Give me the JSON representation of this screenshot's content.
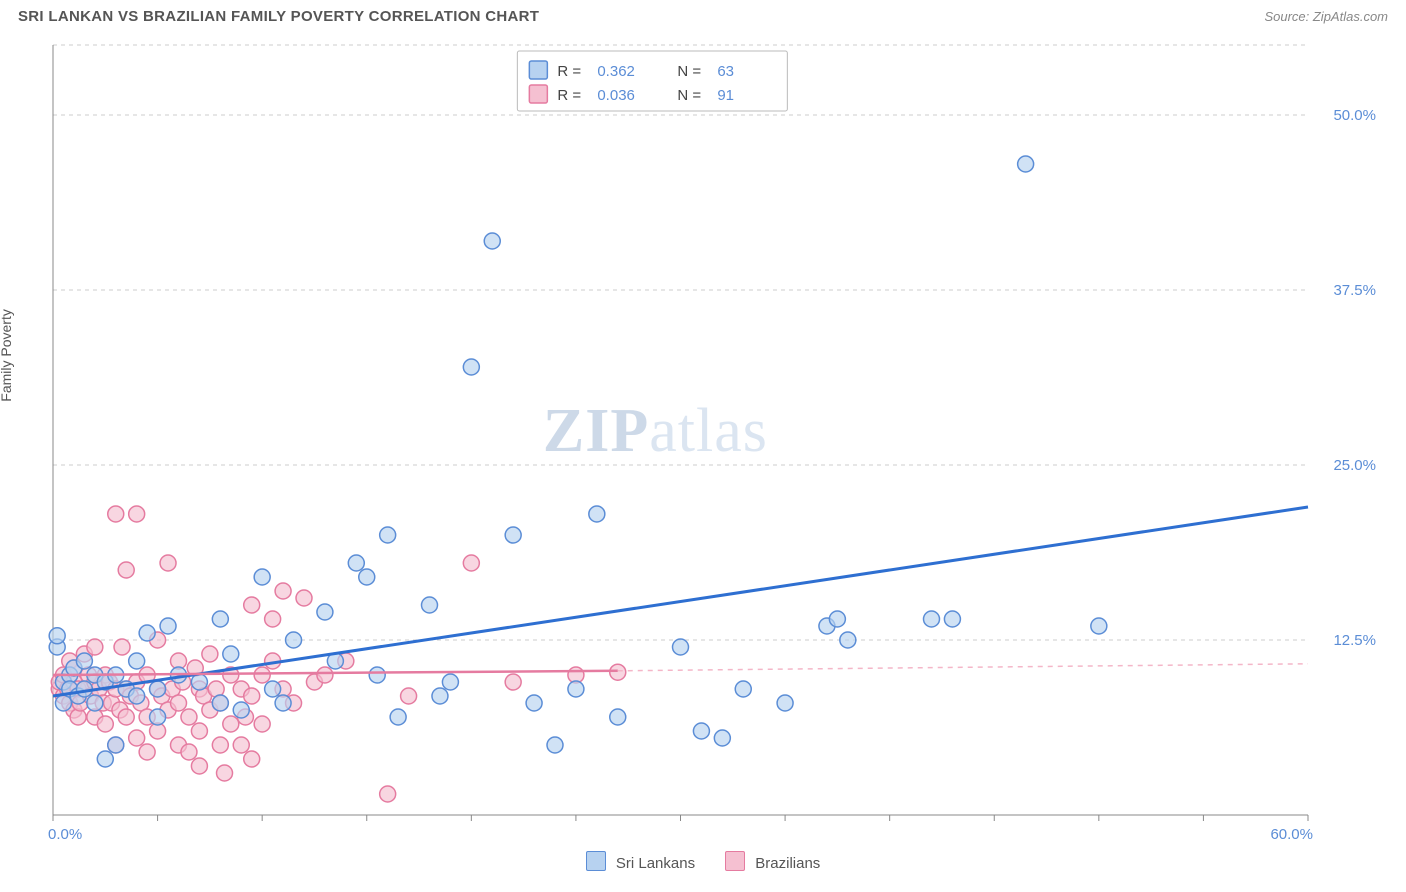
{
  "header": {
    "title": "SRI LANKAN VS BRAZILIAN FAMILY POVERTY CORRELATION CHART",
    "source": "Source: ZipAtlas.com"
  },
  "ylabel": "Family Poverty",
  "chart": {
    "type": "scatter",
    "background_color": "#ffffff",
    "grid_color": "#cccccc",
    "xlim": [
      0,
      60
    ],
    "ylim": [
      0,
      55
    ],
    "ytick_values": [
      12.5,
      25.0,
      37.5,
      50.0
    ],
    "ytick_labels": [
      "12.5%",
      "25.0%",
      "37.5%",
      "50.0%"
    ],
    "x_start_label": "0.0%",
    "x_end_label": "60.0%",
    "xtick_step": 5,
    "marker_radius": 8,
    "series": [
      {
        "name": "Sri Lankans",
        "fill": "#b7d2f0",
        "stroke": "#5b8dd6",
        "fill_opacity": 0.65,
        "R": "0.362",
        "N": "63",
        "trend": {
          "x1": 0,
          "y1": 8.5,
          "x2": 60,
          "y2": 22.0
        },
        "points": [
          [
            0.2,
            12.0
          ],
          [
            0.2,
            12.8
          ],
          [
            0.5,
            8.0
          ],
          [
            0.5,
            9.5
          ],
          [
            0.8,
            10.0
          ],
          [
            0.8,
            9.0
          ],
          [
            1.0,
            10.5
          ],
          [
            1.2,
            8.5
          ],
          [
            1.5,
            9.0
          ],
          [
            1.5,
            11.0
          ],
          [
            2.0,
            10.0
          ],
          [
            2.0,
            8.0
          ],
          [
            2.5,
            9.5
          ],
          [
            2.5,
            4.0
          ],
          [
            3.0,
            10.0
          ],
          [
            3.0,
            5.0
          ],
          [
            3.5,
            9.0
          ],
          [
            4.0,
            11.0
          ],
          [
            4.0,
            8.5
          ],
          [
            4.5,
            13.0
          ],
          [
            5.0,
            9.0
          ],
          [
            5.0,
            7.0
          ],
          [
            5.5,
            13.5
          ],
          [
            6.0,
            10.0
          ],
          [
            7.0,
            9.5
          ],
          [
            8.0,
            8.0
          ],
          [
            8.0,
            14.0
          ],
          [
            8.5,
            11.5
          ],
          [
            9.0,
            7.5
          ],
          [
            10.0,
            17.0
          ],
          [
            10.5,
            9.0
          ],
          [
            11.0,
            8.0
          ],
          [
            11.5,
            12.5
          ],
          [
            13.0,
            14.5
          ],
          [
            13.5,
            11.0
          ],
          [
            14.5,
            18.0
          ],
          [
            15.0,
            17.0
          ],
          [
            15.5,
            10.0
          ],
          [
            16.0,
            20.0
          ],
          [
            16.5,
            7.0
          ],
          [
            18.0,
            15.0
          ],
          [
            18.5,
            8.5
          ],
          [
            19.0,
            9.5
          ],
          [
            20.0,
            32.0
          ],
          [
            21.0,
            41.0
          ],
          [
            22.0,
            20.0
          ],
          [
            23.0,
            8.0
          ],
          [
            24.0,
            5.0
          ],
          [
            25.0,
            9.0
          ],
          [
            26.0,
            21.5
          ],
          [
            27.0,
            7.0
          ],
          [
            30.0,
            12.0
          ],
          [
            31.0,
            6.0
          ],
          [
            32.0,
            5.5
          ],
          [
            33.0,
            9.0
          ],
          [
            35.0,
            8.0
          ],
          [
            37.0,
            13.5
          ],
          [
            37.5,
            14.0
          ],
          [
            38.0,
            12.5
          ],
          [
            42.0,
            14.0
          ],
          [
            43.0,
            14.0
          ],
          [
            46.5,
            46.5
          ],
          [
            50.0,
            13.5
          ]
        ]
      },
      {
        "name": "Brazilians",
        "fill": "#f5c0d1",
        "stroke": "#e57ba0",
        "fill_opacity": 0.65,
        "R": "0.036",
        "N": "91",
        "trend": {
          "x1": 0,
          "y1": 10.0,
          "x2": 27,
          "y2": 10.3
        },
        "dash_extend": {
          "x1": 27,
          "y1": 10.3,
          "x2": 60,
          "y2": 10.8
        },
        "points": [
          [
            0.3,
            9.0
          ],
          [
            0.3,
            9.5
          ],
          [
            0.5,
            10.0
          ],
          [
            0.5,
            8.5
          ],
          [
            0.7,
            9.0
          ],
          [
            0.8,
            11.0
          ],
          [
            0.8,
            8.0
          ],
          [
            1.0,
            9.5
          ],
          [
            1.0,
            7.5
          ],
          [
            1.0,
            10.5
          ],
          [
            1.2,
            9.0
          ],
          [
            1.2,
            7.0
          ],
          [
            1.3,
            8.0
          ],
          [
            1.5,
            9.0
          ],
          [
            1.5,
            11.5
          ],
          [
            1.7,
            10.0
          ],
          [
            1.8,
            8.5
          ],
          [
            2.0,
            9.5
          ],
          [
            2.0,
            7.0
          ],
          [
            2.0,
            12.0
          ],
          [
            2.2,
            9.0
          ],
          [
            2.4,
            8.0
          ],
          [
            2.5,
            10.0
          ],
          [
            2.5,
            6.5
          ],
          [
            2.7,
            9.5
          ],
          [
            2.8,
            8.0
          ],
          [
            3.0,
            21.5
          ],
          [
            3.0,
            9.0
          ],
          [
            3.0,
            5.0
          ],
          [
            3.2,
            7.5
          ],
          [
            3.3,
            12.0
          ],
          [
            3.5,
            9.0
          ],
          [
            3.5,
            7.0
          ],
          [
            3.5,
            17.5
          ],
          [
            3.7,
            8.5
          ],
          [
            4.0,
            21.5
          ],
          [
            4.0,
            9.5
          ],
          [
            4.0,
            5.5
          ],
          [
            4.2,
            8.0
          ],
          [
            4.5,
            10.0
          ],
          [
            4.5,
            7.0
          ],
          [
            4.5,
            4.5
          ],
          [
            5.0,
            9.0
          ],
          [
            5.0,
            6.0
          ],
          [
            5.0,
            12.5
          ],
          [
            5.2,
            8.5
          ],
          [
            5.5,
            18.0
          ],
          [
            5.5,
            7.5
          ],
          [
            5.7,
            9.0
          ],
          [
            6.0,
            8.0
          ],
          [
            6.0,
            5.0
          ],
          [
            6.0,
            11.0
          ],
          [
            6.2,
            9.5
          ],
          [
            6.5,
            7.0
          ],
          [
            6.5,
            4.5
          ],
          [
            6.8,
            10.5
          ],
          [
            7.0,
            9.0
          ],
          [
            7.0,
            6.0
          ],
          [
            7.0,
            3.5
          ],
          [
            7.2,
            8.5
          ],
          [
            7.5,
            11.5
          ],
          [
            7.5,
            7.5
          ],
          [
            7.8,
            9.0
          ],
          [
            8.0,
            5.0
          ],
          [
            8.0,
            8.0
          ],
          [
            8.2,
            3.0
          ],
          [
            8.5,
            10.0
          ],
          [
            8.5,
            6.5
          ],
          [
            9.0,
            9.0
          ],
          [
            9.0,
            5.0
          ],
          [
            9.2,
            7.0
          ],
          [
            9.5,
            15.0
          ],
          [
            9.5,
            8.5
          ],
          [
            9.5,
            4.0
          ],
          [
            10.0,
            10.0
          ],
          [
            10.0,
            6.5
          ],
          [
            10.5,
            11.0
          ],
          [
            10.5,
            14.0
          ],
          [
            11.0,
            16.0
          ],
          [
            11.0,
            9.0
          ],
          [
            11.5,
            8.0
          ],
          [
            12.0,
            15.5
          ],
          [
            12.5,
            9.5
          ],
          [
            13.0,
            10.0
          ],
          [
            14.0,
            11.0
          ],
          [
            16.0,
            1.5
          ],
          [
            17.0,
            8.5
          ],
          [
            20.0,
            18.0
          ],
          [
            22.0,
            9.5
          ],
          [
            25.0,
            10.0
          ],
          [
            27.0,
            10.2
          ]
        ]
      }
    ]
  },
  "bottom_legend": {
    "series1_label": "Sri Lankans",
    "series2_label": "Brazilians"
  }
}
